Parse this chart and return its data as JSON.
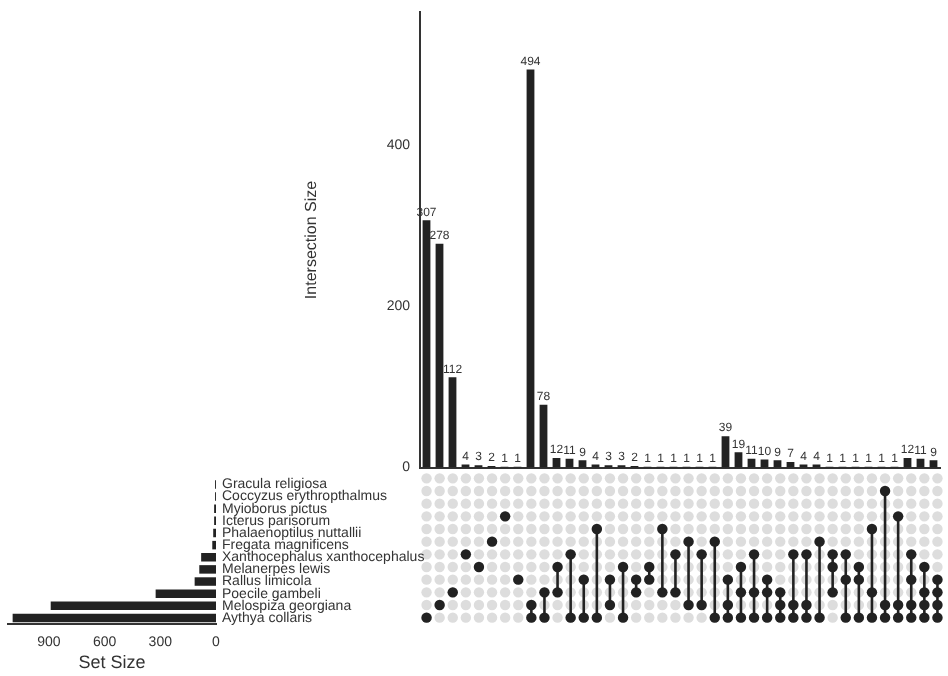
{
  "chart_data": [
    {
      "type": "bar",
      "ylabel": "Intersection Size",
      "categories": [
        null,
        null,
        null,
        null,
        null,
        null,
        null,
        null,
        null,
        null,
        null,
        null,
        null,
        null,
        null,
        null,
        null,
        null,
        null,
        null,
        null,
        null,
        null,
        null,
        null,
        null,
        null,
        null,
        null,
        null,
        null,
        null,
        null,
        null,
        null,
        null,
        null,
        null,
        null,
        null
      ],
      "values": [
        307,
        278,
        112,
        4,
        3,
        2,
        1,
        1,
        494,
        78,
        12,
        11,
        9,
        4,
        3,
        3,
        2,
        1,
        1,
        1,
        1,
        1,
        1,
        39,
        19,
        11,
        10,
        9,
        7,
        4,
        4,
        1,
        1,
        1,
        1,
        1,
        1,
        12,
        11,
        9
      ],
      "color": "#222222",
      "ylim": [
        0,
        565
      ],
      "yticks": [
        0,
        200,
        400
      ],
      "data_labels": true,
      "tick_labels": "y",
      "grid": false,
      "legend": false
    },
    {
      "type": "bar",
      "orientation": "horizontal",
      "xlabel": "Set Size",
      "categories": [
        "Gracula religiosa",
        "Coccyzus erythropthalmus",
        "Myioborus pictus",
        "Icterus parisorum",
        "Phalaenoptilus nuttallii",
        "Fregata magnificens",
        "Xanthocephalus xanthocephalus",
        "Melanerpes lewis",
        "Rallus limicola",
        "Poecile gambeli",
        "Melospiza georgiana",
        "Aythya collaris"
      ],
      "values": [
        5,
        5,
        10,
        10,
        15,
        20,
        80,
        90,
        115,
        325,
        890,
        1095
      ],
      "color": "#222222",
      "xlim": [
        1120,
        0
      ],
      "xticks": [
        900,
        600,
        300,
        0
      ],
      "grid": false,
      "legend": false
    }
  ]
}
